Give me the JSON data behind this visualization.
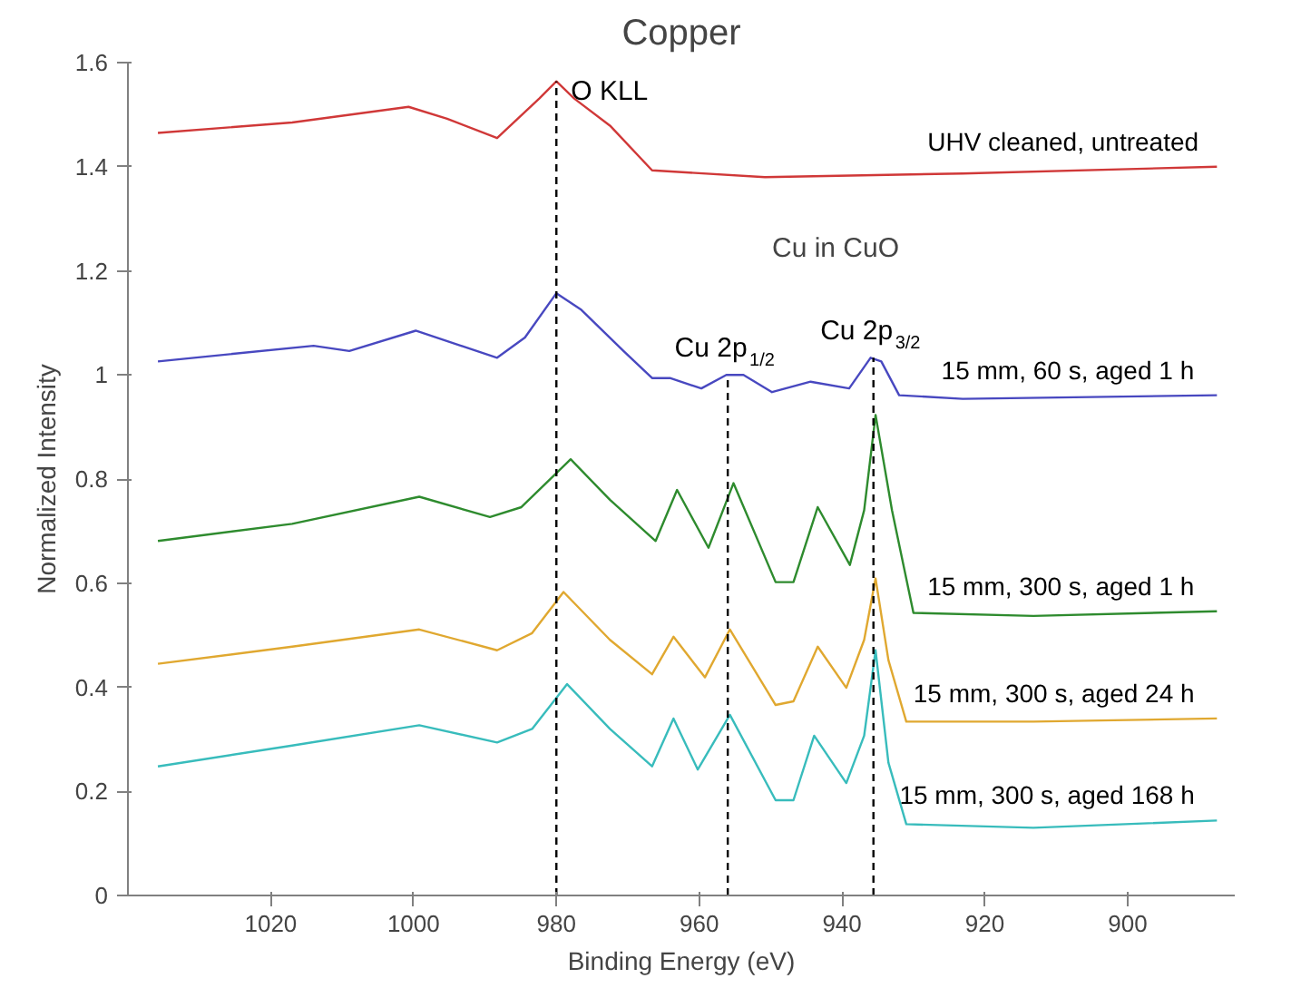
{
  "chart_data": {
    "type": "line",
    "title": "Copper",
    "xlabel": "Binding Energy (eV)",
    "ylabel": "Normalized Intensity",
    "xlim": [
      1040,
      885
    ],
    "xticks": [
      1020,
      1000,
      980,
      960,
      940,
      920,
      900
    ],
    "ylim": [
      0,
      1.6
    ],
    "yticks": [
      0,
      0.2,
      0.4,
      0.6,
      0.8,
      1,
      1.2,
      1.4,
      1.6
    ],
    "grid": false,
    "line_style": "solid",
    "marker": "none",
    "series": [
      {
        "name": "UHV cleaned, untreated",
        "color": "#d03838",
        "x": [
          1035.8,
          1017.0,
          1000.7,
          995.3,
          988.3,
          982.4,
          980,
          977.5,
          972.5,
          966.6,
          950.8,
          923.1,
          887.5
        ],
        "values": [
          1.465,
          1.485,
          1.515,
          1.492,
          1.455,
          1.531,
          1.564,
          1.531,
          1.479,
          1.393,
          1.38,
          1.387,
          1.4
        ]
      },
      {
        "name": "15 mm, 60 s, aged 1 h",
        "color": "#4848c0",
        "x": [
          1035.8,
          1014,
          1009,
          999.7,
          988.3,
          984.4,
          980,
          976.5,
          970.6,
          966.6,
          964.1,
          959.7,
          956.2,
          953.8,
          949.8,
          944.4,
          939,
          936,
          934.5,
          932,
          923.1,
          887.5
        ],
        "values": [
          1.026,
          1.056,
          1.046,
          1.085,
          1.033,
          1.072,
          1.157,
          1.125,
          1.046,
          0.994,
          0.994,
          0.974,
          1.0,
          1.0,
          0.967,
          0.987,
          0.974,
          1.033,
          1.026,
          0.961,
          0.954,
          0.961
        ]
      },
      {
        "name": "15 mm, 300 s, aged 1 h",
        "color": "#2e8b2e",
        "x": [
          1035.8,
          1017,
          999.2,
          989.3,
          984.9,
          978,
          972.5,
          966.1,
          963.1,
          958.7,
          955.2,
          949.3,
          946.8,
          943.4,
          938.9,
          936.9,
          935.3,
          933,
          930,
          913.2,
          887.5
        ],
        "values": [
          0.681,
          0.714,
          0.766,
          0.727,
          0.746,
          0.838,
          0.76,
          0.681,
          0.779,
          0.668,
          0.792,
          0.602,
          0.602,
          0.746,
          0.635,
          0.74,
          0.923,
          0.74,
          0.543,
          0.537,
          0.546
        ]
      },
      {
        "name": "15 mm, 300 s, aged 24 h",
        "color": "#e0a830",
        "x": [
          1035.8,
          1017,
          999.2,
          988.3,
          983.4,
          979,
          972.5,
          966.6,
          963.6,
          959.2,
          955.7,
          949.3,
          946.8,
          943.4,
          939.4,
          936.9,
          935.3,
          933.5,
          931,
          913.2,
          887.5
        ],
        "values": [
          0.445,
          0.478,
          0.511,
          0.471,
          0.504,
          0.583,
          0.491,
          0.425,
          0.497,
          0.419,
          0.511,
          0.366,
          0.373,
          0.478,
          0.399,
          0.491,
          0.609,
          0.452,
          0.334,
          0.334,
          0.34
        ]
      },
      {
        "name": "15 mm, 300 s, aged 168 h",
        "color": "#38bcbc",
        "x": [
          1035.8,
          1017,
          999.2,
          988.3,
          983.4,
          978.5,
          972.5,
          966.6,
          963.6,
          960.2,
          955.7,
          949.3,
          946.8,
          943.9,
          939.4,
          936.9,
          935.3,
          933.5,
          931,
          913.2,
          887.5
        ],
        "values": [
          0.248,
          0.288,
          0.327,
          0.294,
          0.32,
          0.406,
          0.32,
          0.248,
          0.34,
          0.242,
          0.347,
          0.183,
          0.183,
          0.307,
          0.216,
          0.307,
          0.471,
          0.255,
          0.137,
          0.13,
          0.144
        ]
      }
    ],
    "ref_lines": [
      {
        "axis": "x",
        "value": 980,
        "label": "O KLL",
        "color": "#000000",
        "line_style": "dashed"
      },
      {
        "axis": "x",
        "value": 956,
        "label": "Cu 2p$_{1/2}$",
        "color": "#000000",
        "line_style": "dashed"
      },
      {
        "axis": "x",
        "value": 935.6,
        "label": "Cu 2p$_{3/2}$",
        "color": "#000000",
        "line_style": "dashed"
      }
    ],
    "annotations": [
      "Cu in CuO"
    ]
  }
}
